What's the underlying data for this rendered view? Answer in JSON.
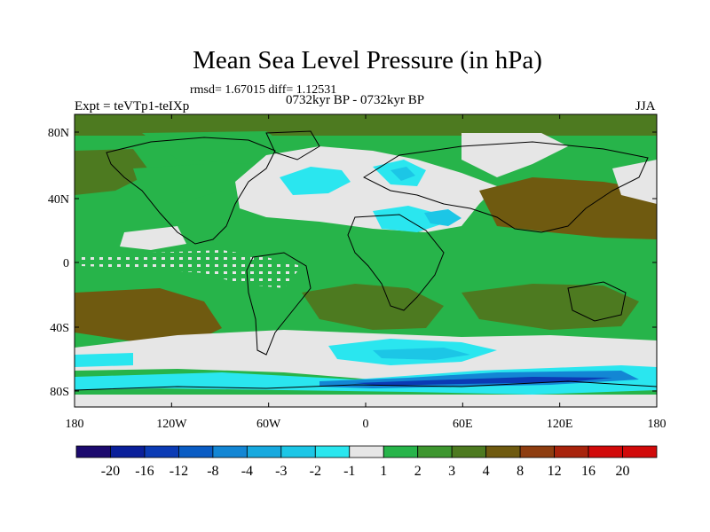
{
  "title": "Mean Sea Level Pressure (in hPa)",
  "stats_text": "rmsd= 1.67015 diff= 1.12531",
  "experiment_label": "Expt = teVTp1-teIXp",
  "period_label": "0732kyr BP - 0732kyr BP",
  "season_label": "JJA",
  "lat_ticks": [
    "80N",
    "40N",
    "0",
    "40S",
    "80S"
  ],
  "lon_ticks": [
    "180",
    "120W",
    "60W",
    "0",
    "60E",
    "120E",
    "180"
  ],
  "colorbar": {
    "labels": [
      "-20",
      "-16",
      "-12",
      "-8",
      "-4",
      "-3",
      "-2",
      "-1",
      "1",
      "2",
      "3",
      "4",
      "8",
      "12",
      "16",
      "20"
    ],
    "colors": [
      "#1c0a6e",
      "#0a1f9a",
      "#0b3bb5",
      "#0a5cc4",
      "#1386d4",
      "#17a9df",
      "#1cc6e6",
      "#2ae6ef",
      "#e6e6e6",
      "#27b44a",
      "#3d962f",
      "#4d7a20",
      "#6f5a10",
      "#8e3d10",
      "#a8230c",
      "#d10a0a"
    ]
  },
  "map_colors": {
    "neutral": "#e6e6e6",
    "green": "#27b44a",
    "dark_green": "#3d962f",
    "olive": "#4d7a20",
    "brown": "#6f5a10",
    "cyan": "#2ae6ef",
    "light_blue": "#1cc6e6",
    "blue": "#1386d4",
    "dark_blue": "#0b3bb5",
    "coast": "#000000"
  }
}
